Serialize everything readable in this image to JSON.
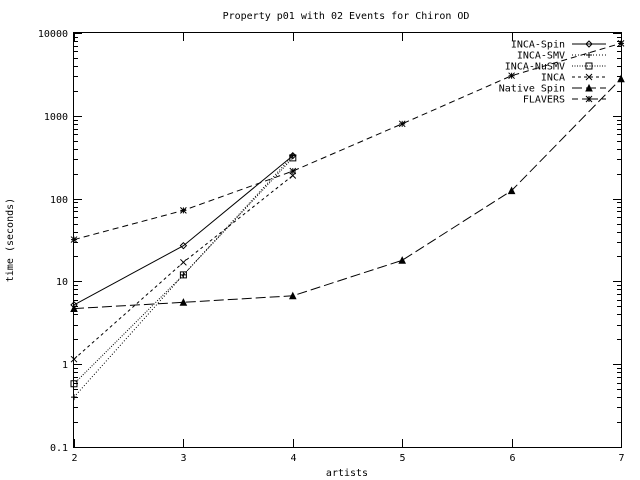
{
  "chart_data": {
    "type": "line",
    "title": "Property p01 with 02 Events for Chiron OD",
    "xlabel": "artists",
    "ylabel": "time (seconds)",
    "xlim": [
      2,
      7
    ],
    "ylim": [
      0.1,
      10000
    ],
    "yscale": "log",
    "x_ticks": [
      2,
      3,
      4,
      5,
      6,
      7
    ],
    "x_tick_labels": [
      "2",
      "3",
      "4",
      "5",
      "6",
      "7"
    ],
    "y_ticks": [
      0.1,
      1,
      10,
      100,
      1000,
      10000
    ],
    "y_tick_labels": [
      "0.1",
      "1",
      "10",
      "100",
      "1000",
      "10000"
    ],
    "grid": false,
    "legend_position": "top-right",
    "series": [
      {
        "name": "INCA-Spin",
        "dash": "solid",
        "marker": "diamond",
        "x": [
          2,
          3,
          4
        ],
        "y": [
          5.2,
          27,
          330
        ]
      },
      {
        "name": "INCA-SMV",
        "dash": "dotted",
        "marker": "plus",
        "x": [
          2,
          3,
          4
        ],
        "y": [
          0.4,
          12,
          330
        ]
      },
      {
        "name": "INCA-NuSMV",
        "dash": "dotted-fine",
        "marker": "square",
        "x": [
          2,
          3,
          4
        ],
        "y": [
          0.58,
          12,
          310
        ]
      },
      {
        "name": "INCA",
        "dash": "dashed-short",
        "marker": "cross",
        "x": [
          2,
          3,
          4
        ],
        "y": [
          1.15,
          17,
          190
        ]
      },
      {
        "name": "Native Spin",
        "dash": "dashed-long",
        "marker": "triangle",
        "x": [
          2,
          3,
          4,
          5,
          6,
          7
        ],
        "y": [
          4.7,
          5.6,
          6.7,
          18,
          125,
          2800
        ]
      },
      {
        "name": "FLAVERS",
        "dash": "dashed",
        "marker": "star",
        "x": [
          2,
          3,
          4,
          5,
          6,
          7
        ],
        "y": [
          32,
          72,
          215,
          800,
          3050,
          7500
        ]
      }
    ]
  }
}
